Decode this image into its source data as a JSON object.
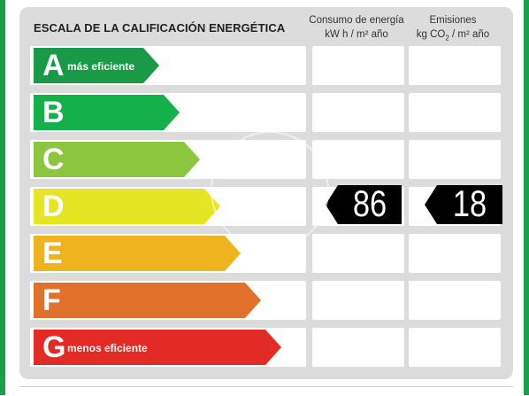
{
  "title": "ESCALA DE LA CALIFICACIÓN ENERGÉTICA",
  "columns": {
    "consumption": {
      "line1": "Consumo de energía",
      "line2": "kW h  / m² año"
    },
    "emissions": {
      "line1": "Emisiones",
      "line2_a": "kg CO",
      "line2_sub": "2",
      "line2_b": " / m² año"
    }
  },
  "ratings": [
    {
      "letter": "A",
      "label": "más eficiente",
      "color": "#1a9a46"
    },
    {
      "letter": "B",
      "label": "",
      "color": "#14b04a"
    },
    {
      "letter": "C",
      "label": "",
      "color": "#8cc63f"
    },
    {
      "letter": "D",
      "label": "",
      "color": "#e6e523"
    },
    {
      "letter": "E",
      "label": "",
      "color": "#efb320"
    },
    {
      "letter": "F",
      "label": "",
      "color": "#e0702a"
    },
    {
      "letter": "G",
      "label": "menos eficiente",
      "color": "#e32b25"
    }
  ],
  "current": {
    "row": "D",
    "consumption_value": "86",
    "emissions_value": "18"
  },
  "colors": {
    "frame": "#1aa04a",
    "panel": "#dcdcdc",
    "badge": "#000000"
  }
}
